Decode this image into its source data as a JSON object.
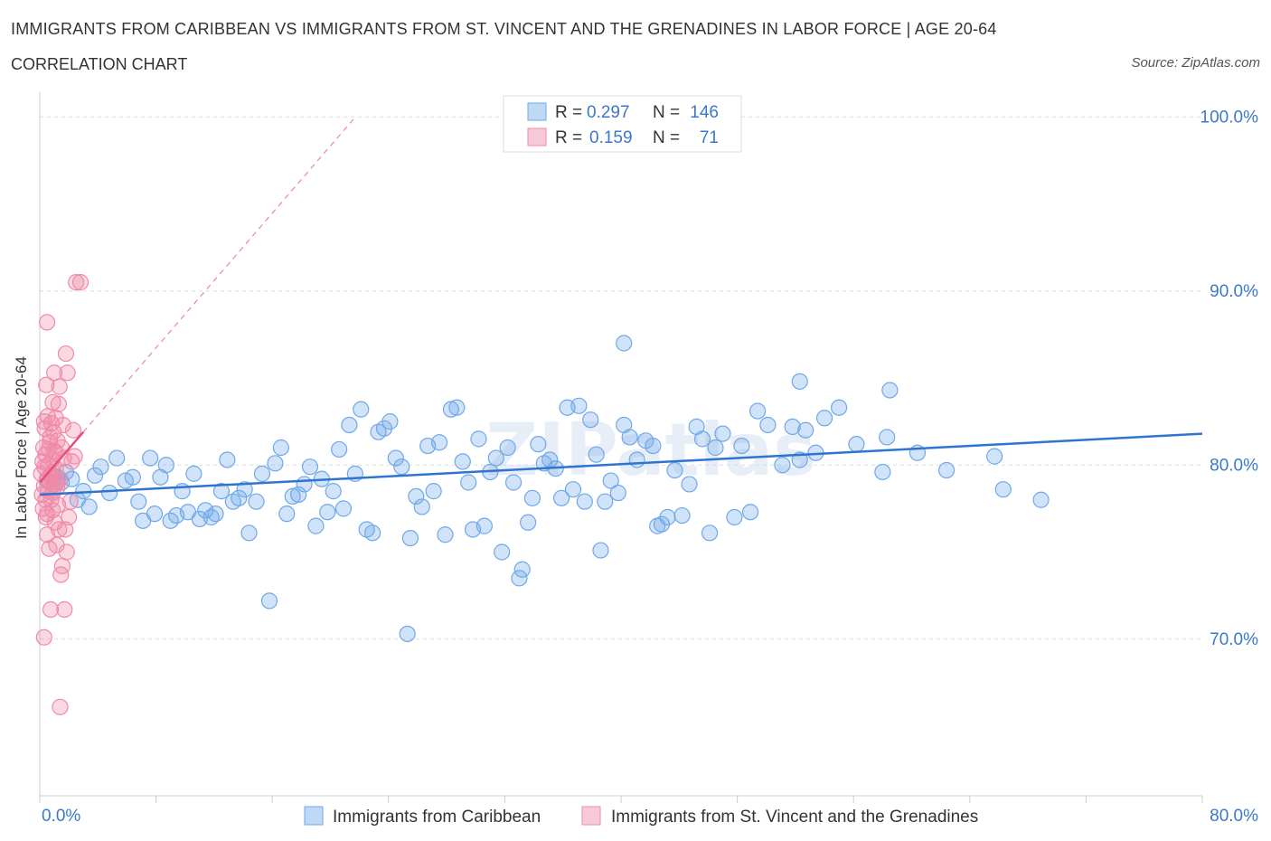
{
  "title": "IMMIGRANTS FROM CARIBBEAN VS IMMIGRANTS FROM ST. VINCENT AND THE GRENADINES IN LABOR FORCE | AGE 20-64",
  "subtitle": "CORRELATION CHART",
  "source": "Source: ZipAtlas.com",
  "watermark": "ZIPatlas",
  "colors": {
    "blue": "#6fa8e8",
    "blue_line": "#2f74d0",
    "pink": "#f08aa8",
    "pink_line": "#e8507a",
    "axis_text": "#3b78c8",
    "grid": "#dddddd"
  },
  "legend_top": [
    {
      "r_label": "R =",
      "r_value": "0.297",
      "n_label": "N =",
      "n_value": "146",
      "color": "blue"
    },
    {
      "r_label": "R =",
      "r_value": "0.159",
      "n_label": "N =",
      "n_value": "71",
      "color": "pink"
    }
  ],
  "chart_data": {
    "type": "scatter",
    "ylabel": "In Labor Force | Age 20-64",
    "xlim": [
      0,
      80
    ],
    "ylim": [
      61,
      101
    ],
    "x_tick_labels": [
      "0.0%",
      "80.0%"
    ],
    "y_ticks": [
      {
        "value": 100,
        "label": "100.0%"
      },
      {
        "value": 90,
        "label": "90.0%"
      },
      {
        "value": 80,
        "label": "80.0%"
      },
      {
        "value": 70,
        "label": "70.0%"
      }
    ],
    "grid": "dashed horizontal",
    "legend_position": "bottom-center",
    "series": [
      {
        "name": "Immigrants from Caribbean",
        "color": "blue",
        "trend": {
          "x": [
            0,
            80
          ],
          "y": [
            78.3,
            81.8
          ]
        },
        "points": [
          [
            0.5,
            79.1
          ],
          [
            0.9,
            79.4
          ],
          [
            1.2,
            79.3
          ],
          [
            1.5,
            79.0
          ],
          [
            1.8,
            79.6
          ],
          [
            2.2,
            79.2
          ],
          [
            2.6,
            78.0
          ],
          [
            3.0,
            78.5
          ],
          [
            3.4,
            77.6
          ],
          [
            3.8,
            79.4
          ],
          [
            4.2,
            79.9
          ],
          [
            4.8,
            78.4
          ],
          [
            5.3,
            80.4
          ],
          [
            5.9,
            79.1
          ],
          [
            6.4,
            79.3
          ],
          [
            6.8,
            77.9
          ],
          [
            7.1,
            76.8
          ],
          [
            7.6,
            80.4
          ],
          [
            7.9,
            77.2
          ],
          [
            8.3,
            79.3
          ],
          [
            8.7,
            80.0
          ],
          [
            9.0,
            76.8
          ],
          [
            9.4,
            77.1
          ],
          [
            9.8,
            78.5
          ],
          [
            10.2,
            77.3
          ],
          [
            10.6,
            79.5
          ],
          [
            11.0,
            76.9
          ],
          [
            11.4,
            77.4
          ],
          [
            11.8,
            77.0
          ],
          [
            12.1,
            77.2
          ],
          [
            12.5,
            78.5
          ],
          [
            12.9,
            80.3
          ],
          [
            13.3,
            77.9
          ],
          [
            13.7,
            78.1
          ],
          [
            14.1,
            78.6
          ],
          [
            14.4,
            76.1
          ],
          [
            14.9,
            77.9
          ],
          [
            15.3,
            79.5
          ],
          [
            15.8,
            72.2
          ],
          [
            16.2,
            80.1
          ],
          [
            16.6,
            81.0
          ],
          [
            17.0,
            77.2
          ],
          [
            17.4,
            78.2
          ],
          [
            17.8,
            78.3
          ],
          [
            18.2,
            78.9
          ],
          [
            18.6,
            79.9
          ],
          [
            19.0,
            76.5
          ],
          [
            19.4,
            79.2
          ],
          [
            19.8,
            77.3
          ],
          [
            20.2,
            78.5
          ],
          [
            20.6,
            80.9
          ],
          [
            20.9,
            77.5
          ],
          [
            21.3,
            82.3
          ],
          [
            21.7,
            79.5
          ],
          [
            22.1,
            83.2
          ],
          [
            22.5,
            76.3
          ],
          [
            22.9,
            76.1
          ],
          [
            23.3,
            81.9
          ],
          [
            23.7,
            82.1
          ],
          [
            24.1,
            82.5
          ],
          [
            24.5,
            80.4
          ],
          [
            24.9,
            79.9
          ],
          [
            25.3,
            70.3
          ],
          [
            25.5,
            75.8
          ],
          [
            25.9,
            78.2
          ],
          [
            26.3,
            77.6
          ],
          [
            26.7,
            81.1
          ],
          [
            27.1,
            78.5
          ],
          [
            27.5,
            81.3
          ],
          [
            27.9,
            76.0
          ],
          [
            28.3,
            83.2
          ],
          [
            28.7,
            83.3
          ],
          [
            29.1,
            80.2
          ],
          [
            29.5,
            79.0
          ],
          [
            29.8,
            76.3
          ],
          [
            30.2,
            81.5
          ],
          [
            30.6,
            76.5
          ],
          [
            31.0,
            79.6
          ],
          [
            31.4,
            80.4
          ],
          [
            31.8,
            75.0
          ],
          [
            32.2,
            81.0
          ],
          [
            32.6,
            79.0
          ],
          [
            33.0,
            73.5
          ],
          [
            33.2,
            74.0
          ],
          [
            33.6,
            76.7
          ],
          [
            33.9,
            78.1
          ],
          [
            34.3,
            81.2
          ],
          [
            34.7,
            80.1
          ],
          [
            35.1,
            80.3
          ],
          [
            35.5,
            79.8
          ],
          [
            35.9,
            78.1
          ],
          [
            36.3,
            83.3
          ],
          [
            36.7,
            78.6
          ],
          [
            37.1,
            83.4
          ],
          [
            37.5,
            77.9
          ],
          [
            37.9,
            82.6
          ],
          [
            38.3,
            80.6
          ],
          [
            38.6,
            75.1
          ],
          [
            38.9,
            77.9
          ],
          [
            39.3,
            79.1
          ],
          [
            39.8,
            78.4
          ],
          [
            40.2,
            82.3
          ],
          [
            40.6,
            81.6
          ],
          [
            41.1,
            80.3
          ],
          [
            41.7,
            81.4
          ],
          [
            42.2,
            81.1
          ],
          [
            42.5,
            76.5
          ],
          [
            42.8,
            76.6
          ],
          [
            43.2,
            77.0
          ],
          [
            43.7,
            79.7
          ],
          [
            44.2,
            77.1
          ],
          [
            44.7,
            78.9
          ],
          [
            45.2,
            82.2
          ],
          [
            45.6,
            81.5
          ],
          [
            46.1,
            76.1
          ],
          [
            46.5,
            81.0
          ],
          [
            47.0,
            81.8
          ],
          [
            47.8,
            77.0
          ],
          [
            48.3,
            81.1
          ],
          [
            48.9,
            77.3
          ],
          [
            49.4,
            83.1
          ],
          [
            50.1,
            82.3
          ],
          [
            51.1,
            80.0
          ],
          [
            51.8,
            82.2
          ],
          [
            52.3,
            80.3
          ],
          [
            52.7,
            82.0
          ],
          [
            53.4,
            80.7
          ],
          [
            54.0,
            82.7
          ],
          [
            55.0,
            83.3
          ],
          [
            56.2,
            81.2
          ],
          [
            58.0,
            79.6
          ],
          [
            60.4,
            80.7
          ],
          [
            52.3,
            84.8
          ],
          [
            58.5,
            84.3
          ],
          [
            40.2,
            87.0
          ],
          [
            58.3,
            81.6
          ],
          [
            62.4,
            79.7
          ],
          [
            65.7,
            80.5
          ],
          [
            66.3,
            78.6
          ],
          [
            68.9,
            78.0
          ]
        ]
      },
      {
        "name": "Immigrants from St. Vincent and the Grenadines",
        "color": "pink",
        "trend": {
          "x": [
            0,
            3.0
          ],
          "y": [
            79.0,
            81.9
          ]
        },
        "points": [
          [
            0.1,
            79.5
          ],
          [
            0.15,
            78.3
          ],
          [
            0.2,
            80.2
          ],
          [
            0.22,
            77.5
          ],
          [
            0.25,
            81.0
          ],
          [
            0.3,
            78.8
          ],
          [
            0.32,
            79.9
          ],
          [
            0.35,
            82.1
          ],
          [
            0.4,
            80.6
          ],
          [
            0.42,
            77.0
          ],
          [
            0.45,
            84.6
          ],
          [
            0.5,
            76.0
          ],
          [
            0.5,
            79.2
          ],
          [
            0.55,
            82.8
          ],
          [
            0.6,
            78.5
          ],
          [
            0.62,
            80.9
          ],
          [
            0.65,
            75.2
          ],
          [
            0.7,
            81.6
          ],
          [
            0.72,
            79.4
          ],
          [
            0.75,
            71.7
          ],
          [
            0.78,
            78.0
          ],
          [
            0.8,
            82.4
          ],
          [
            0.85,
            80.3
          ],
          [
            0.88,
            77.4
          ],
          [
            0.9,
            83.6
          ],
          [
            0.92,
            79.6
          ],
          [
            0.95,
            81.9
          ],
          [
            1.0,
            85.3
          ],
          [
            1.02,
            78.9
          ],
          [
            1.05,
            76.7
          ],
          [
            1.1,
            82.7
          ],
          [
            1.12,
            80.7
          ],
          [
            1.15,
            75.4
          ],
          [
            1.2,
            79.0
          ],
          [
            1.22,
            81.4
          ],
          [
            1.25,
            77.7
          ],
          [
            1.3,
            83.5
          ],
          [
            1.32,
            76.3
          ],
          [
            1.35,
            84.5
          ],
          [
            1.4,
            79.2
          ],
          [
            1.45,
            73.7
          ],
          [
            1.5,
            81.0
          ],
          [
            1.55,
            74.2
          ],
          [
            1.6,
            82.3
          ],
          [
            1.65,
            80.4
          ],
          [
            1.7,
            71.7
          ],
          [
            1.75,
            76.3
          ],
          [
            1.8,
            86.4
          ],
          [
            1.85,
            75.0
          ],
          [
            1.9,
            85.3
          ],
          [
            2.0,
            77.0
          ],
          [
            2.1,
            77.9
          ],
          [
            2.2,
            80.2
          ],
          [
            2.3,
            82.0
          ],
          [
            2.4,
            80.5
          ],
          [
            2.5,
            90.5
          ],
          [
            2.8,
            90.5
          ],
          [
            0.5,
            88.2
          ],
          [
            0.3,
            70.1
          ],
          [
            1.4,
            66.1
          ],
          [
            0.7,
            79.0
          ],
          [
            0.9,
            78.4
          ],
          [
            1.1,
            79.8
          ],
          [
            0.6,
            80.0
          ],
          [
            0.4,
            78.0
          ],
          [
            0.8,
            79.3
          ],
          [
            1.0,
            80.8
          ],
          [
            1.2,
            78.7
          ],
          [
            0.3,
            82.5
          ],
          [
            0.5,
            77.2
          ],
          [
            0.7,
            81.3
          ]
        ]
      }
    ]
  }
}
